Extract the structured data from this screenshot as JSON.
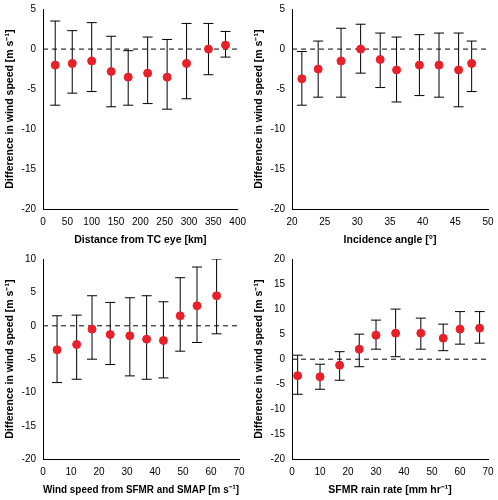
{
  "chart_data": [
    {
      "type": "scatter",
      "xlabel": "Distance from TC eye [km]",
      "ylabel": "Difference in wind speed [m s⁻¹]",
      "x": [
        25,
        60,
        100,
        140,
        175,
        215,
        255,
        295,
        340,
        375
      ],
      "values": [
        -2,
        -1.8,
        -1.5,
        -2.8,
        -3.5,
        -3,
        -3.5,
        -1.8,
        0,
        0.5
      ],
      "error_low": [
        -7,
        -5.5,
        -5.3,
        -7.2,
        -7,
        -6.8,
        -7.5,
        -6.2,
        -3.2,
        -1
      ],
      "error_high": [
        3.5,
        2.3,
        3.3,
        1.6,
        -0.2,
        1.5,
        1.2,
        3.2,
        3.2,
        2.2
      ],
      "xlim": [
        0,
        400
      ],
      "xticks": [
        0,
        50,
        100,
        150,
        200,
        250,
        300,
        350,
        400
      ],
      "ylim": [
        -20,
        5
      ],
      "yticks": [
        -20,
        -15,
        -10,
        -5,
        0,
        5
      ],
      "hline": 0,
      "color": "#e8202a",
      "marker": "circle",
      "grid": false
    },
    {
      "type": "scatter",
      "xlabel": "Incidence angle [°]",
      "ylabel": "Difference in wind speed [m s⁻¹]",
      "x": [
        21.5,
        24,
        27.5,
        30.5,
        33.5,
        36,
        39.5,
        42.5,
        45.5,
        47.5
      ],
      "values": [
        -3.7,
        -2.5,
        -1.5,
        0,
        -1.3,
        -2.6,
        -2,
        -2,
        -2.6,
        -1.8
      ],
      "error_low": [
        -7,
        -6,
        -6,
        -3,
        -4.8,
        -6.6,
        -5.8,
        -6,
        -7.2,
        -5.3
      ],
      "error_high": [
        -0.3,
        1,
        2.6,
        3.1,
        2,
        1.5,
        1.8,
        2,
        2,
        1
      ],
      "xlim": [
        20,
        50
      ],
      "xticks": [
        20,
        25,
        30,
        35,
        40,
        45,
        50
      ],
      "ylim": [
        -20,
        5
      ],
      "yticks": [
        -20,
        -15,
        -10,
        -5,
        0,
        5
      ],
      "hline": 0,
      "color": "#e8202a",
      "marker": "circle",
      "grid": false
    },
    {
      "type": "scatter",
      "xlabel": "Wind speed from SFMR and SMAP [m s⁻¹]",
      "ylabel": "Difference in wind speed [m s⁻¹]",
      "x": [
        5,
        12,
        17.5,
        24,
        31,
        37,
        43,
        49,
        55,
        62
      ],
      "values": [
        -3.6,
        -2.8,
        -0.5,
        -1.3,
        -1.5,
        -2,
        -2.2,
        1.5,
        3,
        4.5
      ],
      "error_low": [
        -8.5,
        -8,
        -5,
        -5.8,
        -7.5,
        -8,
        -7.8,
        -3.8,
        -2.5,
        -1.2
      ],
      "error_high": [
        1.5,
        1.6,
        4.5,
        3.5,
        4.2,
        4.5,
        3.6,
        7.2,
        8.8,
        10
      ],
      "xlim": [
        0,
        70
      ],
      "xticks": [
        0,
        10,
        20,
        30,
        40,
        50,
        60,
        70
      ],
      "ylim": [
        -20,
        10
      ],
      "yticks": [
        -20,
        -15,
        -10,
        -5,
        0,
        5,
        10
      ],
      "hline": 0,
      "color": "#e8202a",
      "marker": "circle",
      "grid": false
    },
    {
      "type": "scatter",
      "xlabel": "SFMR rain rate [mm hr⁻¹]",
      "ylabel": "Difference in wind speed [m s⁻¹]",
      "x": [
        2,
        10,
        17,
        24,
        30,
        37,
        46,
        54,
        60,
        67
      ],
      "values": [
        -3.3,
        -3.5,
        -1.2,
        2,
        4.8,
        5.2,
        5.2,
        4.2,
        6,
        6.2
      ],
      "error_low": [
        -7,
        -6,
        -4.2,
        -1.5,
        2,
        0.5,
        2,
        1.7,
        3,
        3.2
      ],
      "error_high": [
        0.8,
        -1,
        1.5,
        5,
        7.8,
        10,
        8.2,
        7,
        9.5,
        9.5
      ],
      "xlim": [
        0,
        70
      ],
      "xticks": [
        0,
        10,
        20,
        30,
        40,
        50,
        60,
        70
      ],
      "ylim": [
        -20,
        20
      ],
      "yticks": [
        -20,
        -15,
        -10,
        -5,
        0,
        5,
        10,
        15,
        20
      ],
      "hline": 0,
      "color": "#e8202a",
      "marker": "circle",
      "grid": false
    }
  ]
}
